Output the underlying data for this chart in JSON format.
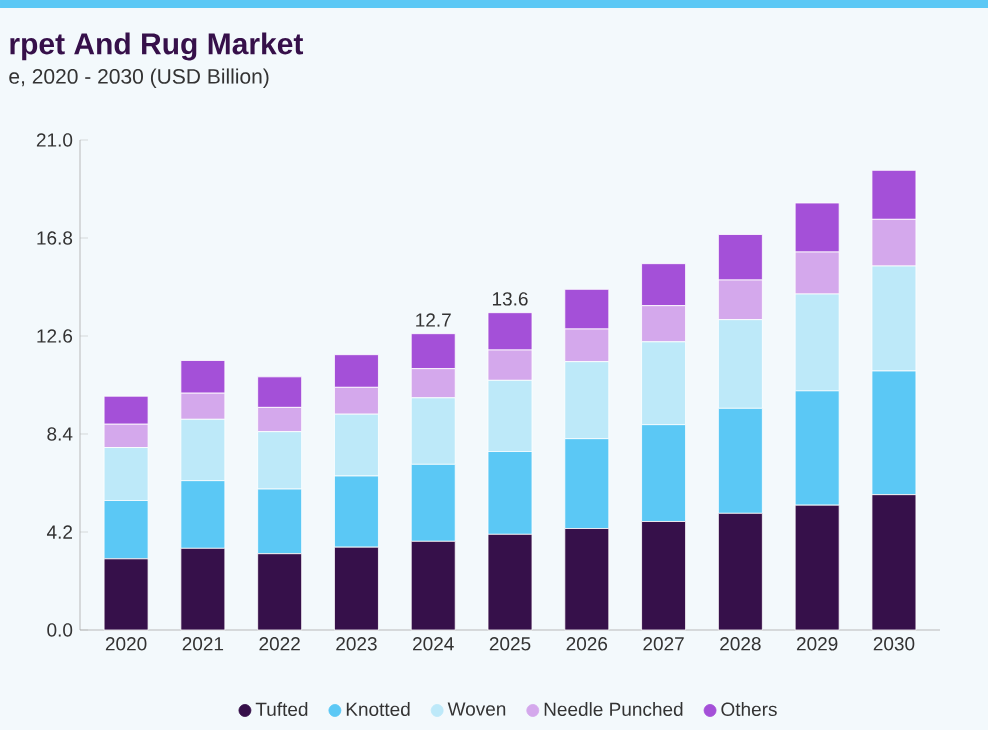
{
  "chart_data": {
    "type": "bar",
    "title": "rpet And Rug Market",
    "subtitle": "e, 2020 - 2030 (USD Billion)",
    "stacked": true,
    "legend": "bottom",
    "grid": false,
    "categories": [
      "2020",
      "2021",
      "2022",
      "2023",
      "2024",
      "2025",
      "2026",
      "2027",
      "2028",
      "2029",
      "2030"
    ],
    "series": [
      {
        "name": "Tufted",
        "color": "#36104a",
        "values": [
          3.05,
          3.5,
          3.27,
          3.55,
          3.8,
          4.1,
          4.35,
          4.65,
          5.0,
          5.35,
          5.8
        ]
      },
      {
        "name": "Knotted",
        "color": "#5bc8f5",
        "values": [
          2.5,
          2.9,
          2.77,
          3.05,
          3.3,
          3.55,
          3.85,
          4.15,
          4.5,
          4.9,
          5.3
        ]
      },
      {
        "name": "Woven",
        "color": "#bde9f9",
        "values": [
          2.27,
          2.63,
          2.46,
          2.65,
          2.85,
          3.05,
          3.3,
          3.55,
          3.8,
          4.15,
          4.5
        ]
      },
      {
        "name": "Needle Punched",
        "color": "#d4a8ec",
        "values": [
          1.0,
          1.12,
          1.04,
          1.15,
          1.25,
          1.3,
          1.4,
          1.55,
          1.7,
          1.8,
          2.0
        ]
      },
      {
        "name": "Others",
        "color": "#a450d8",
        "values": [
          1.2,
          1.4,
          1.31,
          1.4,
          1.5,
          1.6,
          1.7,
          1.8,
          1.95,
          2.1,
          2.1
        ]
      }
    ],
    "totals": [
      null,
      null,
      null,
      null,
      "12.7",
      "13.6",
      null,
      null,
      null,
      null,
      null
    ],
    "ylim": [
      0,
      21
    ],
    "yticks": [
      {
        "value": 0,
        "label": "0.0"
      },
      {
        "value": 4.2,
        "label": "4.2"
      },
      {
        "value": 8.4,
        "label": "8.4"
      },
      {
        "value": 12.6,
        "label": "12.6"
      },
      {
        "value": 16.8,
        "label": "16.8"
      },
      {
        "value": 21,
        "label": "21.0"
      }
    ]
  }
}
